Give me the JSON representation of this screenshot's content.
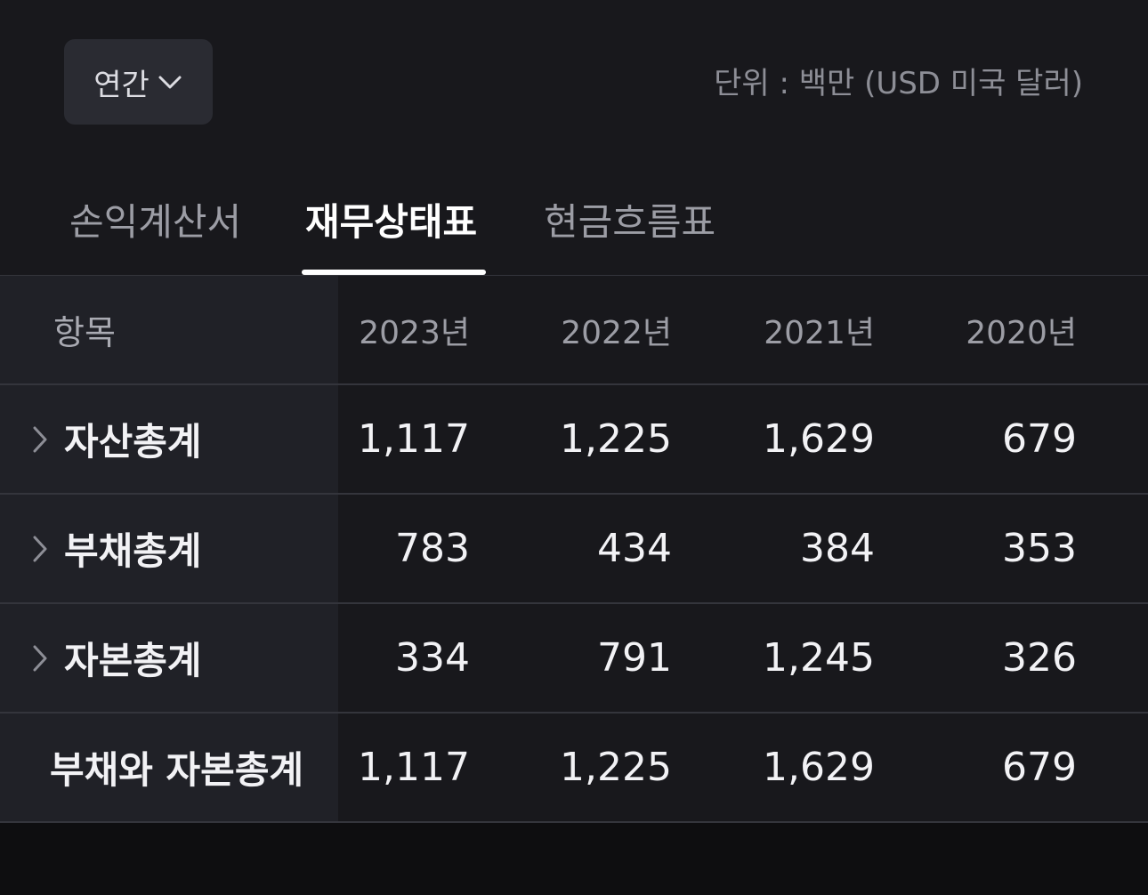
{
  "controls": {
    "period_label": "연간",
    "unit_text": "단위 : 백만 (USD 미국 달러)"
  },
  "tabs": [
    {
      "label": "손익계산서",
      "active": false
    },
    {
      "label": "재무상태표",
      "active": true
    },
    {
      "label": "현금흐름표",
      "active": false
    }
  ],
  "table": {
    "header": {
      "label": "항목",
      "years": [
        "2023년",
        "2022년",
        "2021년",
        "2020년"
      ]
    },
    "rows": [
      {
        "label": "자산총계",
        "expandable": true,
        "values": [
          "1,117",
          "1,225",
          "1,629",
          "679"
        ]
      },
      {
        "label": "부채총계",
        "expandable": true,
        "values": [
          "783",
          "434",
          "384",
          "353"
        ]
      },
      {
        "label": "자본총계",
        "expandable": true,
        "values": [
          "334",
          "791",
          "1,245",
          "326"
        ]
      },
      {
        "label": "부채와 자본총계",
        "expandable": false,
        "values": [
          "1,117",
          "1,225",
          "1,629",
          "679"
        ]
      }
    ]
  },
  "colors": {
    "background": "#18181c",
    "label_column": "#202127",
    "active_tab": "#ffffff",
    "inactive_tab": "#9c9da5"
  }
}
